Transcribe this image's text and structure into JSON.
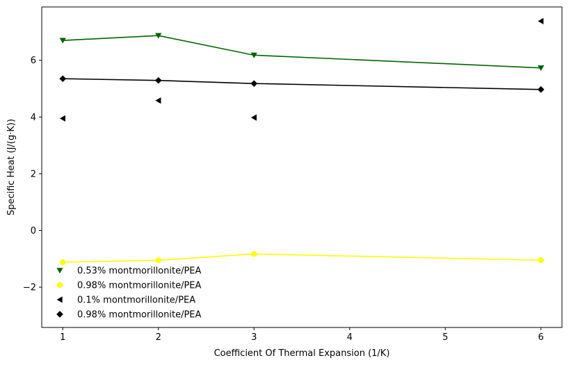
{
  "chart_data": {
    "type": "line",
    "xlabel": "Coefficient Of Thermal Expansion (1/K)",
    "ylabel": "Specific Heat (J/(g·K))",
    "xlim": [
      0.78,
      6.22
    ],
    "ylim": [
      -3.42,
      7.88
    ],
    "xticks": [
      1,
      2,
      3,
      4,
      5,
      6
    ],
    "yticks": [
      -2,
      0,
      2,
      4,
      6
    ],
    "grid": false,
    "legend_position": "lower-left",
    "series": [
      {
        "name": "0.53% montmorillonite/PEA",
        "color": "#006400",
        "marker": "triangle-down",
        "line": true,
        "x": [
          1,
          2,
          3,
          6
        ],
        "y": [
          6.7,
          6.87,
          6.18,
          5.73
        ]
      },
      {
        "name": "0.98% montmorillonite/PEA",
        "color": "#ffff00",
        "marker": "circle",
        "line": true,
        "x": [
          1,
          2,
          3,
          6
        ],
        "y": [
          -1.12,
          -1.05,
          -0.83,
          -1.05
        ]
      },
      {
        "name": "0.1% montmorillonite/PEA",
        "color": "#000000",
        "marker": "triangle-left",
        "line": false,
        "x": [
          1,
          2,
          3,
          6
        ],
        "y": [
          3.95,
          4.58,
          3.98,
          7.38
        ]
      },
      {
        "name": "0.98% montmorillonite/PEA",
        "color": "#000000",
        "marker": "diamond",
        "line": true,
        "x": [
          1,
          2,
          3,
          6
        ],
        "y": [
          5.35,
          5.29,
          5.18,
          4.97
        ]
      }
    ]
  }
}
